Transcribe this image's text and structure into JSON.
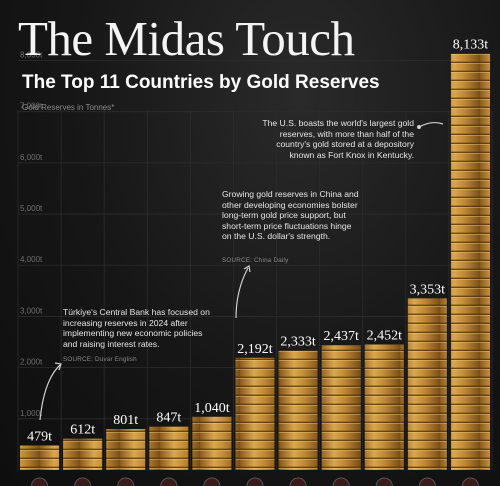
{
  "title": "The Midas Touch",
  "subtitle": "The Top 11 Countries by Gold Reserves",
  "chart_data": {
    "type": "bar",
    "ylabel": "Gold Reserves in Tonnes*",
    "ylim": [
      0,
      8400
    ],
    "yticks": [
      "1,000t",
      "2,000t",
      "3,000t",
      "4,000t",
      "5,000t",
      "6,000t",
      "7,000t",
      "8,000t"
    ],
    "ytick_values": [
      1000,
      2000,
      3000,
      4000,
      5000,
      6000,
      7000,
      8000
    ],
    "grid": true,
    "values": [
      479,
      612,
      801,
      847,
      1040,
      2192,
      2333,
      2437,
      2452,
      3353,
      8133
    ],
    "value_labels": [
      "479t",
      "612t",
      "801t",
      "847t",
      "1,040t",
      "2,192t",
      "2,333t",
      "2,437t",
      "2,452t",
      "3,353t",
      "8,133t"
    ]
  },
  "colors": {
    "background": "#141414",
    "gold": "#c8923a",
    "grid": "#2c2c2c"
  },
  "annotations": {
    "turkey_note": "Türkiye's Central Bank has focused on increasing reserves in 2024 after implementing new economic policies and raising interest rates.",
    "turkey_source": "SOURCE: Duvar English",
    "china_note": "Growing gold reserves in China and other developing economies bolster long-term gold price support, but short-term price fluctuations hinge on the U.S. dollar's strength.",
    "china_source": "SOURCE: China Daily",
    "us_note": "The U.S. boasts the world's largest gold reserves, with more than half of the country's gold stored at a depository known as Fort Knox in Kentucky."
  }
}
